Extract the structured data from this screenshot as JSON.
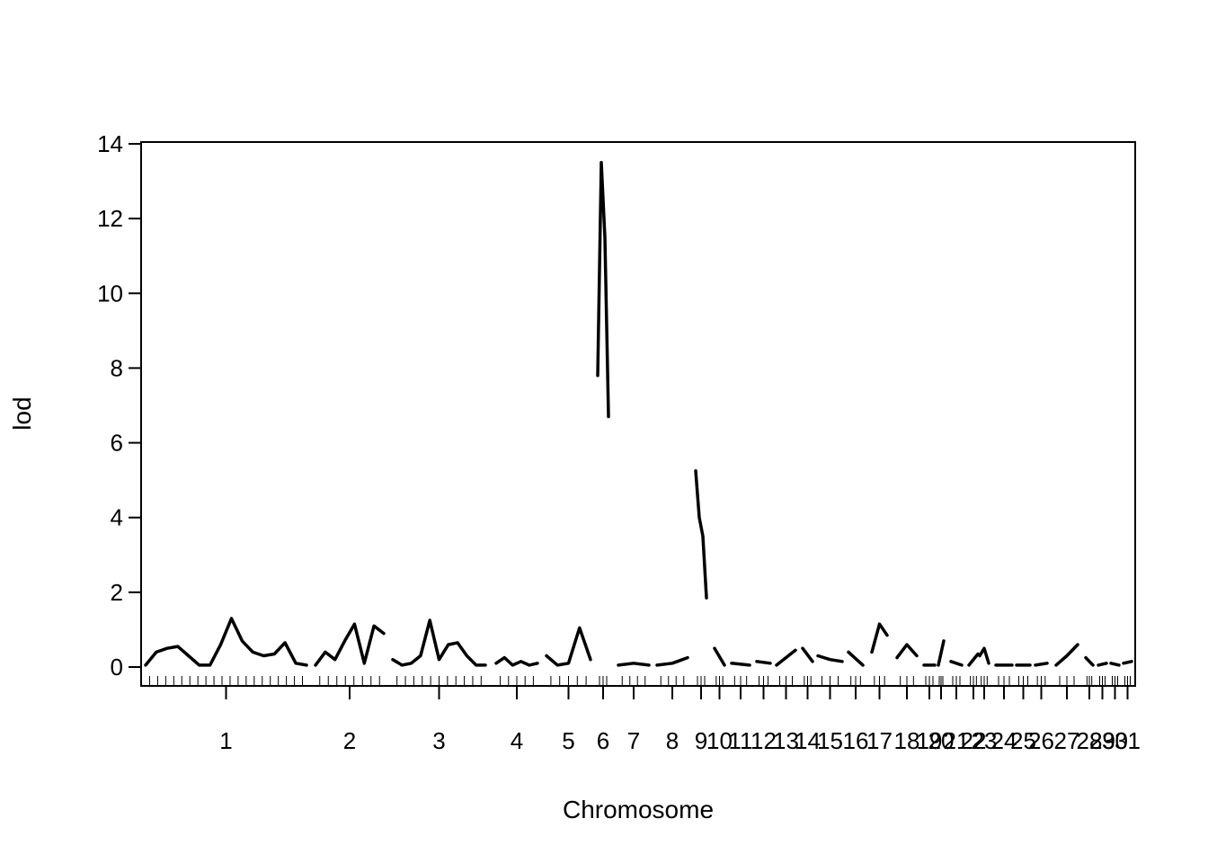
{
  "chart_data": {
    "type": "line",
    "title": "",
    "xlabel": "Chromosome",
    "ylabel": "lod",
    "ylim": [
      0,
      14
    ],
    "yticks": [
      0,
      2,
      4,
      6,
      8,
      10,
      12,
      14
    ],
    "grid": false,
    "legend": "none",
    "line_color": "#000000",
    "chromosomes": [
      {
        "label": "1",
        "lod": [
          0.05,
          0.4,
          0.5,
          0.55,
          0.3,
          0.05,
          0.05,
          0.6,
          1.3,
          0.7,
          0.4,
          0.3,
          0.35,
          0.65,
          0.1,
          0.05
        ]
      },
      {
        "label": "2",
        "lod": [
          0.05,
          0.4,
          0.2,
          0.7,
          1.15,
          0.1,
          1.1,
          0.9
        ]
      },
      {
        "label": "3",
        "lod": [
          0.2,
          0.05,
          0.1,
          0.3,
          1.25,
          0.2,
          0.6,
          0.65,
          0.3,
          0.05,
          0.05
        ]
      },
      {
        "label": "4",
        "lod": [
          0.1,
          0.25,
          0.05,
          0.15,
          0.05,
          0.1
        ]
      },
      {
        "label": "5",
        "lod": [
          0.3,
          0.05,
          0.1,
          1.05,
          0.2
        ]
      },
      {
        "label": "6",
        "lod": [
          7.8,
          13.5,
          11.5,
          6.7
        ]
      },
      {
        "label": "7",
        "lod": [
          0.05,
          0.1,
          0.05
        ]
      },
      {
        "label": "8",
        "lod": [
          0.05,
          0.1,
          0.25
        ]
      },
      {
        "label": "9",
        "lod": [
          5.25,
          4.0,
          3.5,
          1.85
        ]
      },
      {
        "label": "10",
        "lod": [
          0.5,
          0.05
        ]
      },
      {
        "label": "11",
        "lod": [
          0.1,
          0.05
        ]
      },
      {
        "label": "12",
        "lod": [
          0.15,
          0.1
        ]
      },
      {
        "label": "13",
        "lod": [
          0.05,
          0.45
        ]
      },
      {
        "label": "14",
        "lod": [
          0.5,
          0.15
        ]
      },
      {
        "label": "15",
        "lod": [
          0.3,
          0.2,
          0.15
        ]
      },
      {
        "label": "16",
        "lod": [
          0.4,
          0.05
        ]
      },
      {
        "label": "17",
        "lod": [
          0.4,
          1.15,
          0.85
        ]
      },
      {
        "label": "18",
        "lod": [
          0.25,
          0.6,
          0.3
        ]
      },
      {
        "label": "19",
        "lod": [
          0.05,
          0.05
        ]
      },
      {
        "label": "20",
        "lod": [
          0.05,
          0.7
        ]
      },
      {
        "label": "21",
        "lod": [
          0.15,
          0.05
        ]
      },
      {
        "label": "22",
        "lod": [
          0.05,
          0.35
        ]
      },
      {
        "label": "23",
        "lod": [
          0.3,
          0.5,
          0.1
        ]
      },
      {
        "label": "24",
        "lod": [
          0.05,
          0.05
        ]
      },
      {
        "label": "25",
        "lod": [
          0.05,
          0.05
        ]
      },
      {
        "label": "26",
        "lod": [
          0.05,
          0.1
        ]
      },
      {
        "label": "27",
        "lod": [
          0.05,
          0.3,
          0.6
        ]
      },
      {
        "label": "28",
        "lod": [
          0.25,
          0.05
        ]
      },
      {
        "label": "29",
        "lod": [
          0.05,
          0.1
        ]
      },
      {
        "label": "30",
        "lod": [
          0.1,
          0.05
        ]
      },
      {
        "label": "31",
        "lod": [
          0.1,
          0.15
        ]
      }
    ]
  }
}
